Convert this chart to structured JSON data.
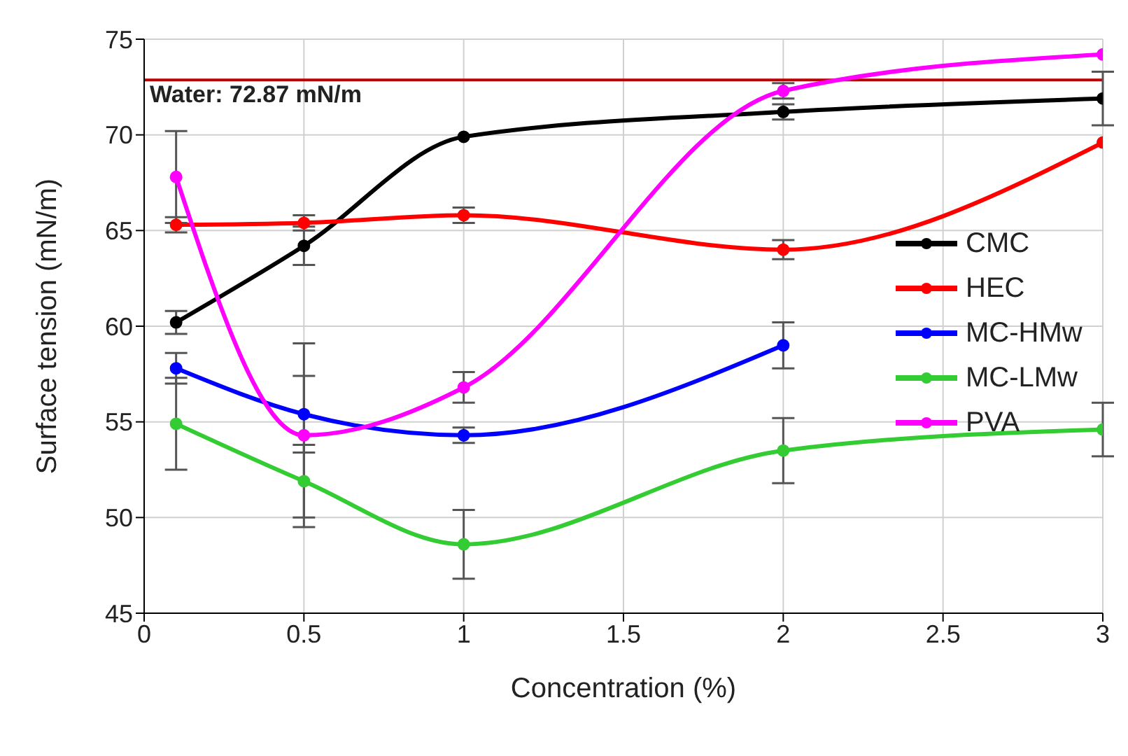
{
  "chart_data": {
    "type": "line",
    "xlabel": "Concentration (%)",
    "ylabel": "Surface tension (mN/m)",
    "x": [
      0.1,
      0.5,
      1,
      2,
      3
    ],
    "xlim": [
      0,
      3
    ],
    "xticks": [
      0,
      0.5,
      1,
      1.5,
      2,
      2.5,
      3
    ],
    "ylim": [
      45,
      75
    ],
    "yticks": [
      45,
      50,
      55,
      60,
      65,
      70,
      75
    ],
    "grid": true,
    "legend": "right",
    "marker": "circle",
    "line_style": "solid",
    "ref_lines": [
      {
        "axis": "y",
        "value": 72.87,
        "label": "Water: 72.87 mN/m",
        "color": "#c00000"
      }
    ],
    "series": [
      {
        "name": "CMC",
        "color": "#000000",
        "values": [
          60.2,
          64.2,
          69.9,
          71.2,
          71.9
        ],
        "errors": [
          0.6,
          1.0,
          null,
          0.4,
          1.4
        ]
      },
      {
        "name": "HEC",
        "color": "#ff0000",
        "values": [
          65.3,
          65.4,
          65.8,
          64.0,
          69.6
        ],
        "errors": [
          0.4,
          0.4,
          0.4,
          0.5,
          null
        ]
      },
      {
        "name": "MC-HMw",
        "color": "#0000ff",
        "values": [
          57.8,
          55.4,
          54.3,
          59.0,
          null
        ],
        "errors": [
          0.8,
          2.0,
          0.4,
          1.2,
          null
        ]
      },
      {
        "name": "MC-LMw",
        "color": "#33cc33",
        "values": [
          54.9,
          51.9,
          48.6,
          53.5,
          54.6
        ],
        "errors": [
          2.4,
          1.9,
          1.8,
          1.7,
          1.4
        ]
      },
      {
        "name": "PVA",
        "color": "#ff00ff",
        "values": [
          67.8,
          54.3,
          56.8,
          72.3,
          74.2
        ],
        "errors": [
          2.4,
          4.8,
          0.8,
          0.4,
          null
        ]
      }
    ]
  }
}
